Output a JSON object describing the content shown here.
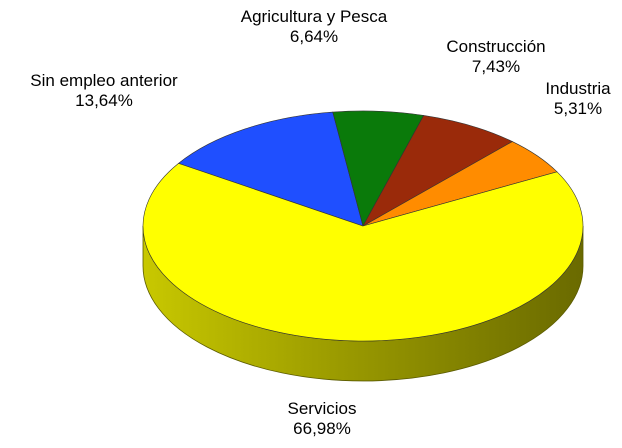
{
  "chart_data": {
    "type": "pie",
    "style": "3d",
    "title": "",
    "start_angle_from_top_deg": -57,
    "slices": [
      {
        "name": "Sin empleo anterior",
        "value": 13.64,
        "label": "13,64%",
        "color": "#1f4fff"
      },
      {
        "name": "Agricultura y Pesca",
        "value": 6.64,
        "label": "6,64%",
        "color": "#0a7a0a"
      },
      {
        "name": "Construcción",
        "value": 7.43,
        "label": "7,43%",
        "color": "#9a2a0a"
      },
      {
        "name": "Industria",
        "value": 5.31,
        "label": "5,31%",
        "color": "#ff8c00"
      },
      {
        "name": "Servicios",
        "value": 66.98,
        "label": "66,98%",
        "color": "#ffff00"
      }
    ]
  }
}
